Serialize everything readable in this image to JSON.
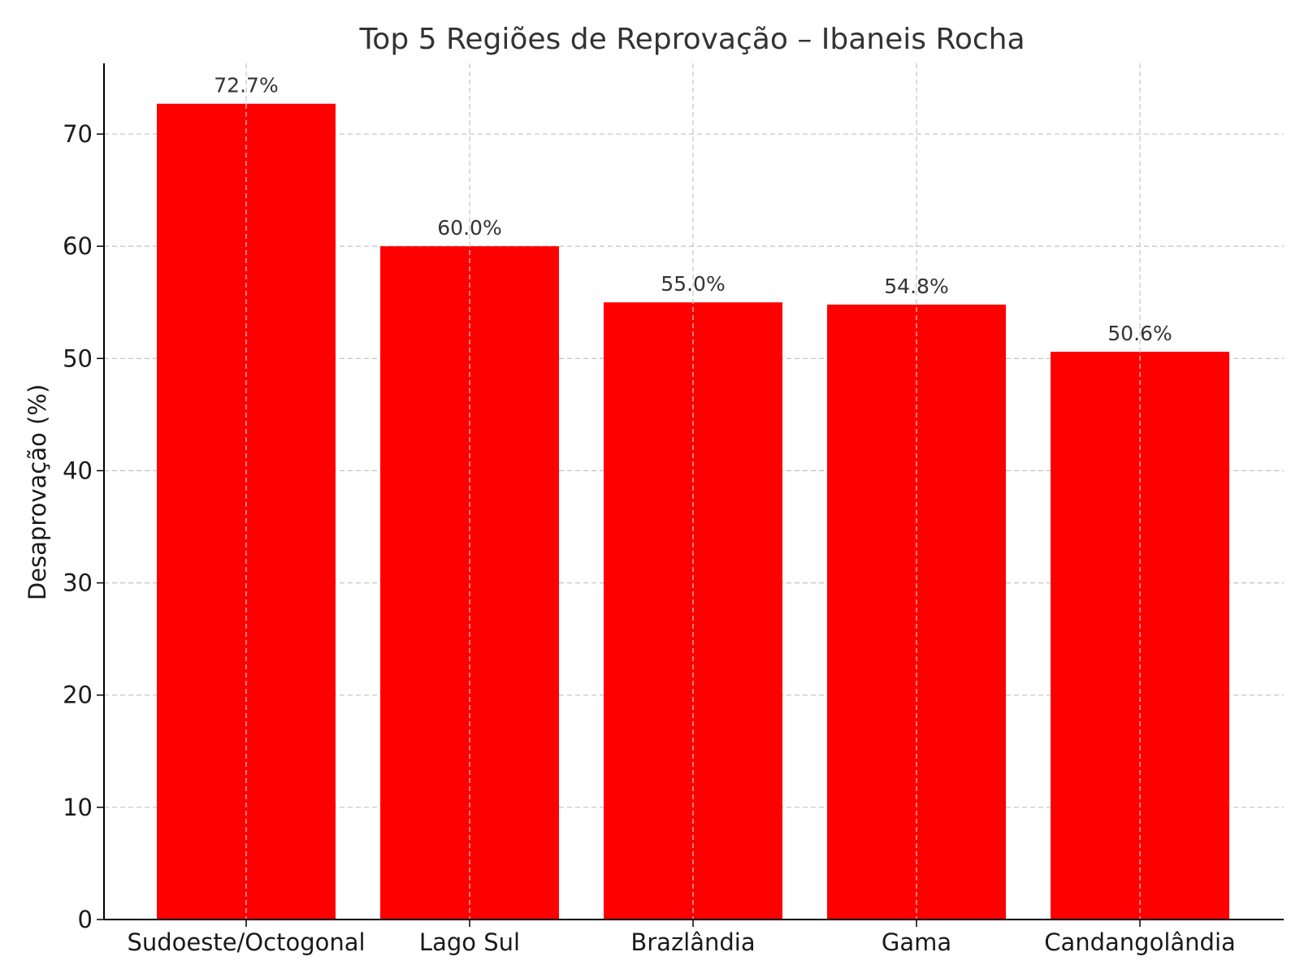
{
  "chart_data": {
    "type": "bar",
    "title": "Top 5 Regiões de Reprovação – Ibaneis Rocha",
    "xlabel": "",
    "ylabel": "Desaprovação (%)",
    "categories": [
      "Sudoeste/Octogonal",
      "Lago Sul",
      "Brazlândia",
      "Gama",
      "Candangolândia"
    ],
    "values": [
      72.7,
      60.0,
      55.0,
      54.8,
      50.6
    ],
    "data_labels": [
      "72.7%",
      "60.0%",
      "55.0%",
      "54.8%",
      "50.6%"
    ],
    "ylim": [
      0,
      76.3
    ],
    "yticks": [
      0,
      10,
      20,
      30,
      40,
      50,
      60,
      70
    ],
    "grid": true,
    "bar_color": "#ff0000",
    "text_color": "#333333",
    "grid_color": "#c8c8c8",
    "axis_color": "#000000"
  }
}
